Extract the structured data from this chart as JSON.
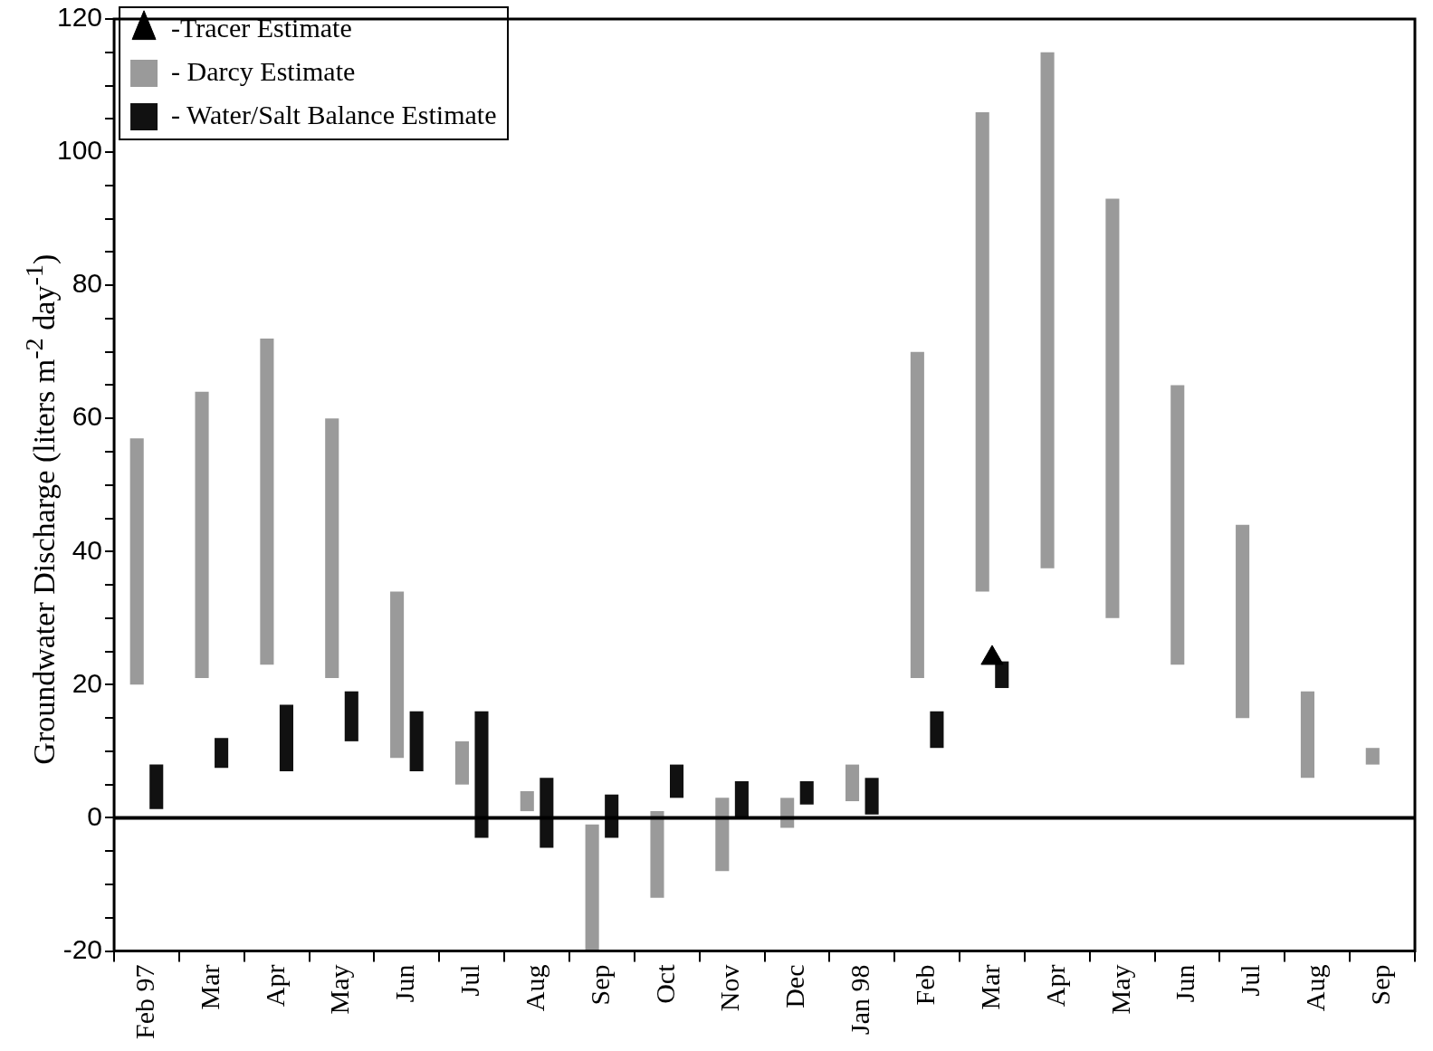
{
  "chart_data": {
    "type": "bar",
    "ylabel": "Groundwater Discharge (liters m$^{-2}$ day$^{-1}$)",
    "categories": [
      "Feb 97",
      "Mar",
      "Apr",
      "May",
      "Jun",
      "Jul",
      "Aug",
      "Sep",
      "Oct",
      "Nov",
      "Dec",
      "Jan 98",
      "Feb",
      "Mar",
      "Apr",
      "May",
      "Jun",
      "Jul",
      "Aug",
      "Sep"
    ],
    "series": [
      {
        "name": "- Darcy Estimate",
        "color": "#9a9a9a",
        "base": [
          20,
          21,
          23,
          21,
          9,
          5,
          1,
          -20,
          -12,
          -8,
          -1.5,
          2.5,
          21,
          34,
          37.5,
          30,
          23,
          15,
          6,
          8
        ],
        "values": [
          37,
          43,
          49,
          39,
          25,
          6.5,
          3,
          19,
          13,
          11,
          4.5,
          5.5,
          49,
          72,
          77.5,
          63,
          42,
          29,
          13,
          2.5
        ]
      },
      {
        "name": "- Water/Salt Balance Estimate",
        "color": "#111111",
        "base": [
          1.3,
          7.5,
          7,
          11.5,
          7,
          -3,
          -4.5,
          -3,
          3,
          0,
          2,
          0.5,
          10.5,
          19.5,
          null,
          null,
          null,
          null,
          null,
          null
        ],
        "values": [
          6.7,
          4.5,
          10,
          7.5,
          9,
          19,
          10.5,
          6.5,
          5,
          5.5,
          3.5,
          5.5,
          5.5,
          4,
          null,
          null,
          null,
          null,
          null,
          null
        ]
      },
      {
        "name": "-Tracer Estimate",
        "type": "scatter",
        "color": "#000000",
        "marker": "triangle",
        "values": [
          null,
          null,
          null,
          null,
          null,
          null,
          null,
          null,
          null,
          null,
          null,
          null,
          null,
          24,
          null,
          null,
          null,
          null,
          null,
          null
        ]
      }
    ],
    "ylim": [
      -20,
      120
    ],
    "yticks": [
      -20,
      {
        "value": -15,
        "label": null
      },
      {
        "value": -10,
        "label": null
      },
      {
        "value": -5,
        "label": null
      },
      0,
      {
        "value": 5,
        "label": null
      },
      {
        "value": 10,
        "label": null
      },
      {
        "value": 15,
        "label": null
      },
      20,
      {
        "value": 25,
        "label": null
      },
      {
        "value": 30,
        "label": null
      },
      {
        "value": 35,
        "label": null
      },
      40,
      {
        "value": 45,
        "label": null
      },
      {
        "value": 50,
        "label": null
      },
      {
        "value": 55,
        "label": null
      },
      60,
      {
        "value": 65,
        "label": null
      },
      {
        "value": 70,
        "label": null
      },
      {
        "value": 75,
        "label": null
      },
      80,
      {
        "value": 85,
        "label": null
      },
      {
        "value": 90,
        "label": null
      },
      {
        "value": 95,
        "label": null
      },
      100,
      {
        "value": 105,
        "label": null
      },
      {
        "value": 110,
        "label": null
      },
      {
        "value": 115,
        "label": null
      },
      120
    ],
    "ref_lines": [
      {
        "axis": "y",
        "value": 0,
        "color": "#000000"
      }
    ],
    "grid": false,
    "legend": "top left"
  }
}
